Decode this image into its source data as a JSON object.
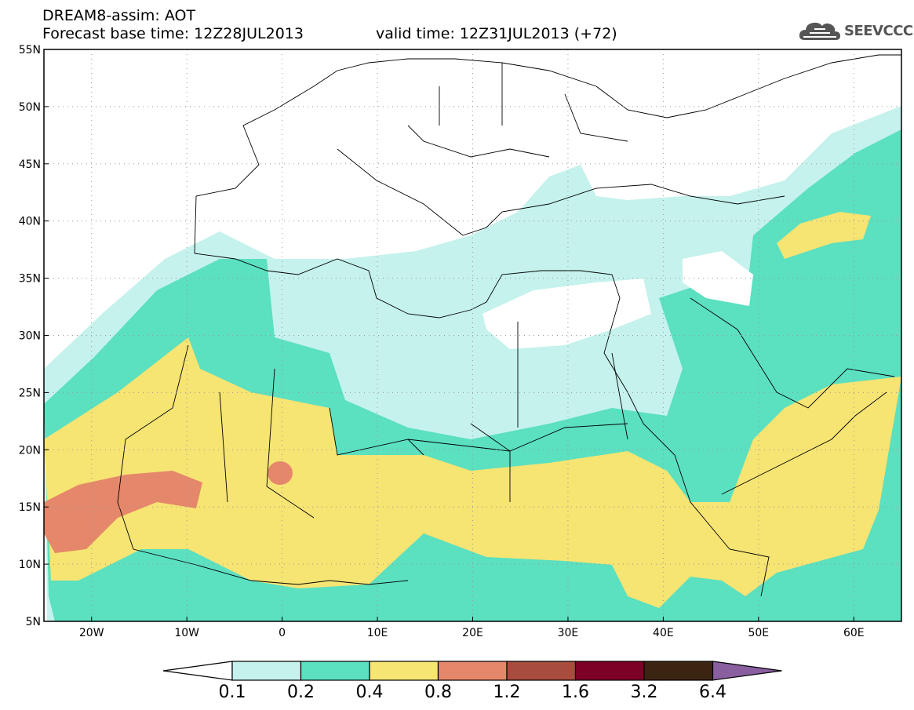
{
  "title": {
    "line1": "DREAM8-assim: AOT",
    "base_time": "Forecast base time: 12Z28JUL2013",
    "valid_time": "valid time: 12Z31JUL2013 (+72)"
  },
  "logo": {
    "text": "SEEVCCC",
    "icon": "cloud-icon"
  },
  "map": {
    "lon_range": [
      -25,
      65
    ],
    "lat_range": [
      5,
      55
    ],
    "lat_labels": [
      "55N",
      "50N",
      "45N",
      "40N",
      "35N",
      "30N",
      "25N",
      "20N",
      "15N",
      "10N",
      "5N"
    ],
    "lon_labels": [
      "20W",
      "10W",
      "0",
      "10E",
      "20E",
      "30E",
      "40E",
      "50E",
      "60E"
    ]
  },
  "legend": {
    "levels": [
      "0.1",
      "0.2",
      "0.4",
      "0.8",
      "1.2",
      "1.6",
      "3.2",
      "6.4"
    ],
    "colors": [
      "#ffffff",
      "#c5f2ec",
      "#5be0c0",
      "#f6e473",
      "#e5876a",
      "#a84c3e",
      "#7d0026",
      "#3c2412",
      "#8a5fa0"
    ]
  }
}
